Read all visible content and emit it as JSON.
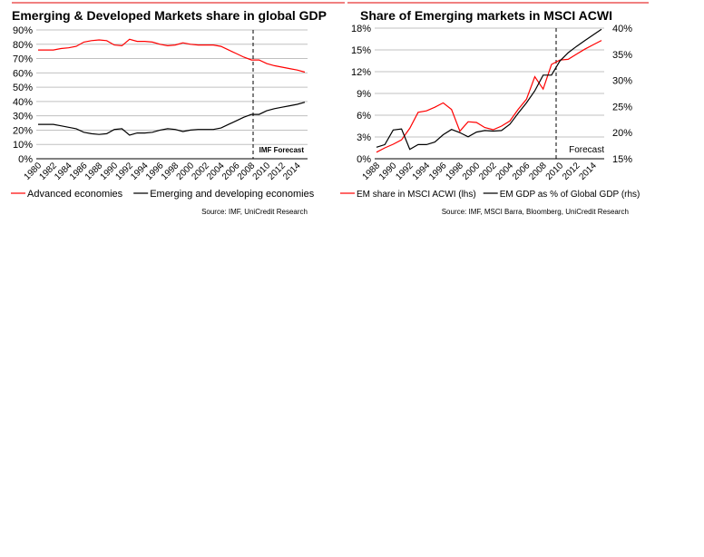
{
  "chart_data": [
    {
      "type": "line",
      "title": "Emerging & Developed Markets share in global GDP",
      "x": [
        1980,
        1981,
        1982,
        1983,
        1984,
        1985,
        1986,
        1987,
        1988,
        1989,
        1990,
        1991,
        1992,
        1993,
        1994,
        1995,
        1996,
        1997,
        1998,
        1999,
        2000,
        2001,
        2002,
        2003,
        2004,
        2005,
        2006,
        2007,
        2008,
        2009,
        2010,
        2011,
        2012,
        2013,
        2014,
        2015
      ],
      "xticks": [
        "1980",
        "1982",
        "1984",
        "1986",
        "1988",
        "1990",
        "1992",
        "1994",
        "1996",
        "1998",
        "2000",
        "2002",
        "2004",
        "2006",
        "2008",
        "2010",
        "2012",
        "2014"
      ],
      "yticks": [
        "0%",
        "10%",
        "20%",
        "30%",
        "40%",
        "50%",
        "60%",
        "70%",
        "80%",
        "90%"
      ],
      "ylim": [
        0,
        90
      ],
      "series": [
        {
          "name": "Advanced economies",
          "color": "#ff0000",
          "values": [
            76,
            76,
            76,
            77,
            77.5,
            78.5,
            81.5,
            82.5,
            83,
            82.5,
            79.5,
            79,
            83.5,
            82,
            82,
            81.5,
            80,
            79,
            79.5,
            81,
            80,
            79.5,
            79.5,
            79.5,
            78.5,
            76,
            73.5,
            71,
            69,
            69,
            66.5,
            65,
            64,
            63,
            62,
            60.5
          ]
        },
        {
          "name": "Emerging and developing economies",
          "color": "#000000",
          "values": [
            24,
            24,
            24,
            23,
            22,
            21,
            18.5,
            17.5,
            17,
            17.5,
            20.5,
            21,
            16.5,
            18,
            18,
            18.5,
            20,
            21,
            20.5,
            19,
            20,
            20.5,
            20.5,
            20.5,
            21.5,
            24,
            26.5,
            29,
            31,
            31,
            33.5,
            35,
            36,
            37,
            38,
            39.5
          ]
        }
      ],
      "forecast_from": 2009,
      "annotation": "IMF Forecast",
      "source": "Source: IMF, UniCredit Research"
    },
    {
      "type": "line",
      "title": "Share of Emerging markets in MSCI ACWI",
      "x": [
        1988,
        1989,
        1990,
        1991,
        1992,
        1993,
        1994,
        1995,
        1996,
        1997,
        1998,
        1999,
        2000,
        2001,
        2002,
        2003,
        2004,
        2005,
        2006,
        2007,
        2008,
        2009,
        2010,
        2011,
        2012,
        2013,
        2014,
        2015
      ],
      "xticks": [
        "1988",
        "1990",
        "1992",
        "1994",
        "1996",
        "1998",
        "2000",
        "2002",
        "2004",
        "2006",
        "2008",
        "2010",
        "2012",
        "2014"
      ],
      "yticks": [
        "0%",
        "3%",
        "6%",
        "9%",
        "12%",
        "15%",
        "18%"
      ],
      "ylim": [
        0,
        18
      ],
      "y2ticks": [
        "15%",
        "20%",
        "25%",
        "30%",
        "35%",
        "40%"
      ],
      "y2lim": [
        15,
        40
      ],
      "series": [
        {
          "name": "EM share in MSCI ACWI (lhs)",
          "axis": "left",
          "color": "#ff0000",
          "values": [
            0.9,
            1.5,
            2.0,
            2.6,
            4.2,
            6.4,
            6.6,
            7.1,
            7.7,
            6.8,
            3.8,
            5.1,
            5.0,
            4.3,
            4.0,
            4.5,
            5.2,
            6.8,
            8.2,
            11.3,
            9.6,
            13.0,
            13.6,
            13.7,
            14.4,
            15.1,
            15.7,
            16.3
          ]
        },
        {
          "name": "EM GDP as % of Global GDP (rhs)",
          "axis": "right",
          "color": "#000000",
          "values": [
            17.2,
            17.7,
            20.5,
            20.7,
            16.8,
            17.7,
            17.7,
            18.2,
            19.6,
            20.6,
            20,
            19.2,
            20.1,
            20.4,
            20.3,
            20.4,
            21.6,
            23.7,
            25.7,
            28.0,
            31,
            31,
            33.7,
            35.3,
            36.5,
            37.6,
            38.7,
            39.8
          ]
        }
      ],
      "forecast_from": 2010,
      "annotation": "Forecast",
      "source": "Source: IMF, MSCI Barra, Bloomberg, UniCredit Research"
    }
  ]
}
